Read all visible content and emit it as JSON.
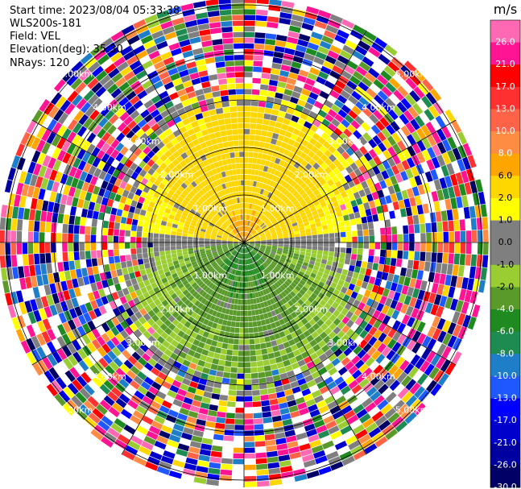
{
  "header": {
    "start_time": "Start time: 2023/08/04 05:33:38",
    "site": "WLS200s-181",
    "field": "Field: VEL",
    "elevation": "Elevation(deg): 35.30",
    "nrays": "NRays: 120"
  },
  "chart_data": {
    "type": "heatmap",
    "projection": "polar-ppi",
    "field": "VEL",
    "units": "m/s",
    "nrays": 120,
    "max_range_km": 5.4,
    "range_rings_km": [
      1,
      2,
      3,
      4,
      5
    ],
    "range_labels": [
      "1.00km",
      "2.00km",
      "3.00km",
      "4.00km",
      "5.00km"
    ],
    "spokes_deg": [
      0,
      30,
      60,
      90,
      120,
      150,
      180,
      210,
      240,
      270,
      300,
      330
    ],
    "velocity_pattern": {
      "north_core_ms": 8.0,
      "north_outer_ms": 2.5,
      "south_core_ms": -6.0,
      "south_outer_ms": -2.0,
      "valid_range_km": 2.6,
      "noise_beyond": true
    },
    "colorbar": {
      "title": "m/s",
      "bounds": [
        -30,
        -26,
        -21,
        -17,
        -13,
        -10,
        -8,
        -6,
        -4,
        -2,
        -1,
        0,
        1,
        2,
        6,
        8,
        10,
        13,
        17,
        21,
        26,
        30
      ],
      "tick_labels": [
        "26.0",
        "21.0",
        "17.0",
        "13.0",
        "10.0",
        "8.0",
        "6.0",
        "2.0",
        "1.0",
        "0.0",
        "-1.0",
        "-2.0",
        "-4.0",
        "-6.0",
        "-8.0",
        "-10.0",
        "-13.0",
        "-17.0",
        "-21.0",
        "-26.0",
        "-30.0"
      ],
      "colors": [
        "#000066",
        "#0000a0",
        "#0000cc",
        "#0000ff",
        "#2058ff",
        "#1e7fc8",
        "#1e8c50",
        "#1f8a1f",
        "#5a9a2a",
        "#9acd32",
        "#7f7f7f",
        "#7f7f7f",
        "#ffff00",
        "#ffd700",
        "#ffa500",
        "#ff8c42",
        "#ff6347",
        "#ff3030",
        "#ff0000",
        "#ff1493",
        "#ff69b4"
      ]
    }
  }
}
